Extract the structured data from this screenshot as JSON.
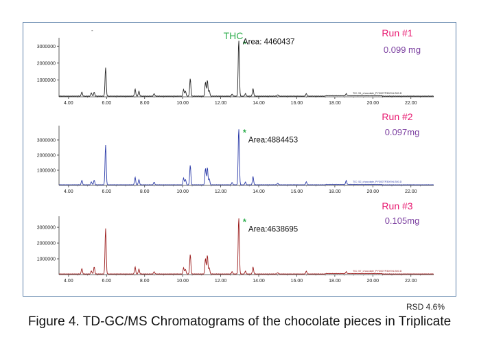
{
  "compound_label": "THC",
  "rsd": "RSD 4.6%",
  "caption": "Figure 4. TD-GC/MS Chromatograms of the chocolate pieces in Triplicate",
  "colors": {
    "frame": "#5a7fa8",
    "run_label": "#e8176f",
    "amount": "#7b3fa0",
    "thc": "#2fae4e",
    "asterisk": "#2fae4e"
  },
  "chart_data": [
    {
      "type": "line",
      "run": "Run #1",
      "amount": "0.099 mg",
      "area_label": "Area: 4460437",
      "trace_label": "TIC: 51_chocolate_PY300TP300%LS00.D",
      "color": "#222222",
      "xlim": [
        3.5,
        23.2
      ],
      "ylim": [
        0,
        3500000
      ],
      "xticks": [
        "4.00",
        "6.00",
        "8.00",
        "10.00",
        "12.00",
        "14.00",
        "16.00",
        "18.00",
        "20.00",
        "22.00"
      ],
      "yticks": [
        "1000000",
        "2000000",
        "3000000"
      ],
      "peaks": [
        [
          4.7,
          250000
        ],
        [
          5.2,
          200000
        ],
        [
          5.35,
          230000
        ],
        [
          5.95,
          1700000
        ],
        [
          7.5,
          420000
        ],
        [
          7.7,
          300000
        ],
        [
          8.5,
          150000
        ],
        [
          10.05,
          400000
        ],
        [
          10.15,
          300000
        ],
        [
          10.4,
          1050000
        ],
        [
          11.2,
          850000
        ],
        [
          11.3,
          950000
        ],
        [
          11.4,
          350000
        ],
        [
          12.6,
          120000
        ],
        [
          12.95,
          3350000
        ],
        [
          13.3,
          150000
        ],
        [
          13.7,
          450000
        ],
        [
          15.0,
          80000
        ],
        [
          16.5,
          150000
        ],
        [
          18.6,
          120000
        ]
      ]
    },
    {
      "type": "line",
      "run": "Run #2",
      "amount": "0.097mg",
      "area_label": "Area:4884453",
      "trace_label": "TIC: 52_chocolate_PY300TP300%LS00.D",
      "color": "#2a3aa8",
      "xlim": [
        3.5,
        23.2
      ],
      "ylim": [
        0,
        3950000
      ],
      "xticks": [
        "4.00",
        "6.00",
        "8.00",
        "10.00",
        "12.00",
        "14.00",
        "16.00",
        "18.00",
        "20.00",
        "22.00"
      ],
      "yticks": [
        "1000000",
        "2000000",
        "3000000"
      ],
      "peaks": [
        [
          4.7,
          300000
        ],
        [
          5.2,
          200000
        ],
        [
          5.35,
          300000
        ],
        [
          5.95,
          2650000
        ],
        [
          7.5,
          500000
        ],
        [
          7.7,
          350000
        ],
        [
          8.5,
          180000
        ],
        [
          10.05,
          450000
        ],
        [
          10.15,
          350000
        ],
        [
          10.4,
          1300000
        ],
        [
          11.2,
          1100000
        ],
        [
          11.3,
          1150000
        ],
        [
          11.4,
          400000
        ],
        [
          12.6,
          150000
        ],
        [
          12.95,
          3750000
        ],
        [
          13.3,
          180000
        ],
        [
          13.7,
          550000
        ],
        [
          15.0,
          100000
        ],
        [
          16.5,
          200000
        ],
        [
          18.6,
          250000
        ]
      ]
    },
    {
      "type": "line",
      "run": "Run #3",
      "amount": "0.105mg",
      "area_label": "Area:4638695",
      "trace_label": "TIC: 57_chocolate_PY300TP300%LS00.D",
      "color": "#9b1c1c",
      "xlim": [
        3.5,
        23.2
      ],
      "ylim": [
        0,
        3700000
      ],
      "xticks": [
        "4.00",
        "6.00",
        "8.00",
        "10.00",
        "12.00",
        "14.00",
        "16.00",
        "18.00",
        "20.00",
        "22.00"
      ],
      "yticks": [
        "1000000",
        "2000000",
        "3000000"
      ],
      "peaks": [
        [
          4.7,
          350000
        ],
        [
          5.2,
          200000
        ],
        [
          5.35,
          450000
        ],
        [
          5.95,
          2900000
        ],
        [
          7.5,
          450000
        ],
        [
          7.7,
          320000
        ],
        [
          8.5,
          150000
        ],
        [
          10.05,
          400000
        ],
        [
          10.15,
          300000
        ],
        [
          10.4,
          1250000
        ],
        [
          11.2,
          1000000
        ],
        [
          11.3,
          1200000
        ],
        [
          11.4,
          400000
        ],
        [
          12.6,
          150000
        ],
        [
          12.95,
          3600000
        ],
        [
          13.3,
          180000
        ],
        [
          13.7,
          450000
        ],
        [
          15.0,
          80000
        ],
        [
          16.5,
          180000
        ],
        [
          18.6,
          120000
        ]
      ]
    }
  ]
}
